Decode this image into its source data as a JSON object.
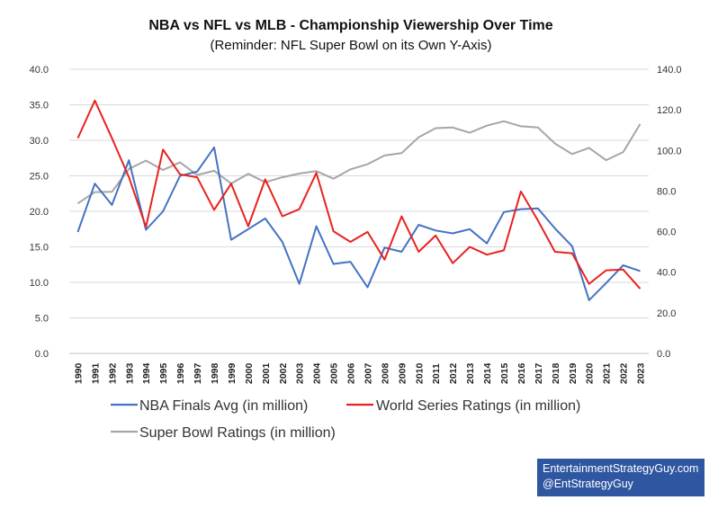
{
  "chart_data": {
    "type": "line",
    "title": "NBA vs NFL vs MLB - Championship Viewership Over Time",
    "subtitle": "(Reminder: NFL Super Bowl on its Own Y-Axis)",
    "x": [
      "1990",
      "1991",
      "1992",
      "1993",
      "1994",
      "1995",
      "1996",
      "1997",
      "1998",
      "1999",
      "2000",
      "2001",
      "2002",
      "2003",
      "2004",
      "2005",
      "2006",
      "2007",
      "2008",
      "2009",
      "2010",
      "2011",
      "2012",
      "2013",
      "2014",
      "2015",
      "2016",
      "2017",
      "2018",
      "2019",
      "2020",
      "2021",
      "2022",
      "2023"
    ],
    "ylim_left": [
      0,
      40
    ],
    "yticks_left": [
      "0.0",
      "5.0",
      "10.0",
      "15.0",
      "20.0",
      "25.0",
      "30.0",
      "35.0",
      "40.0"
    ],
    "ylim_right": [
      0,
      140
    ],
    "yticks_right": [
      "0.0",
      "20.0",
      "40.0",
      "60.0",
      "80.0",
      "100.0",
      "120.0",
      "140.0"
    ],
    "grid": true,
    "legend_position": "bottom",
    "series": [
      {
        "name": "NBA Finals Avg (in million)",
        "axis": "left",
        "color": "#4472c4",
        "values": [
          17.1,
          23.9,
          20.9,
          27.2,
          17.4,
          20.0,
          25.0,
          25.6,
          29.0,
          16.0,
          17.5,
          19.0,
          15.7,
          9.8,
          17.9,
          12.6,
          12.9,
          9.3,
          14.9,
          14.3,
          18.1,
          17.3,
          16.9,
          17.5,
          15.5,
          19.9,
          20.3,
          20.4,
          17.6,
          15.1,
          7.5,
          9.9,
          12.4,
          11.6
        ]
      },
      {
        "name": "World Series Ratings (in million)",
        "axis": "left",
        "color": "#e8231f",
        "values": [
          30.3,
          35.6,
          30.3,
          24.8,
          17.8,
          28.7,
          25.2,
          24.8,
          20.2,
          23.9,
          17.9,
          24.5,
          19.3,
          20.3,
          25.4,
          17.2,
          15.7,
          17.1,
          13.2,
          19.3,
          14.3,
          16.6,
          12.7,
          15.0,
          13.9,
          14.5,
          22.8,
          18.7,
          14.3,
          14.1,
          9.8,
          11.7,
          11.8,
          9.1
        ]
      },
      {
        "name": "Super Bowl Ratings (in million)",
        "axis": "right",
        "color": "#a6a6a6",
        "values": [
          73.9,
          79.5,
          79.6,
          90.9,
          95.0,
          90.4,
          94.1,
          87.9,
          90.0,
          83.7,
          88.5,
          84.3,
          86.8,
          88.6,
          89.8,
          86.1,
          90.7,
          93.2,
          97.5,
          98.7,
          106.5,
          111.0,
          111.3,
          108.7,
          112.2,
          114.4,
          111.9,
          111.3,
          103.4,
          98.2,
          101.3,
          95.2,
          99.2,
          113.0
        ]
      }
    ]
  },
  "legend": {
    "nba": "NBA Finals Avg (in million)",
    "mlb": "World Series Ratings (in million)",
    "nfl": "Super Bowl Ratings (in million)"
  },
  "credit": {
    "line1": "EntertainmentStrategyGuy.com",
    "line2": "@EntStrategyGuy",
    "background": "#2f56a0"
  }
}
